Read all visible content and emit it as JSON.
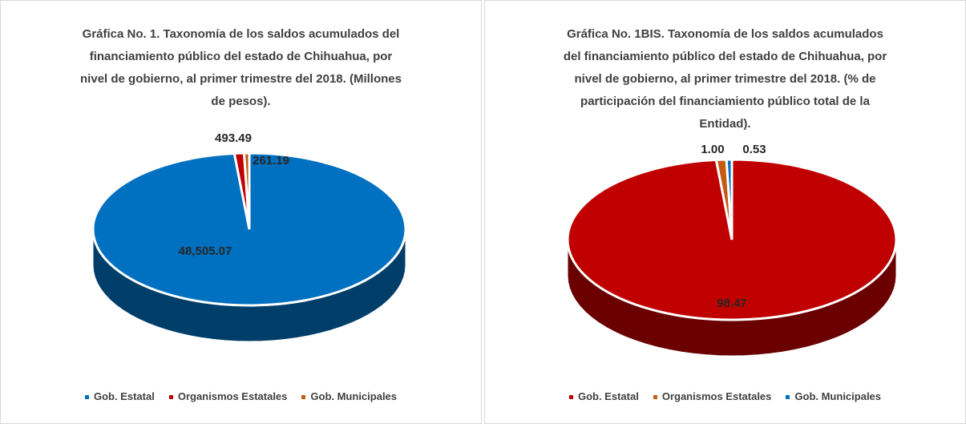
{
  "chart_data": [
    {
      "type": "pie",
      "title": "Gráfica No. 1. Taxonomía de los saldos acumulados del financiamiento público del estado de Chihuahua, por nivel de gobierno, al primer trimestre del 2018. (Millones de pesos).",
      "categories": [
        "Gob. Estatal",
        "Organismos Estatales",
        "Gob. Municipales"
      ],
      "values": [
        48505.07,
        493.49,
        261.19
      ],
      "value_labels": [
        "48,505.07",
        "493.49",
        "261.19"
      ],
      "colors": [
        "#0070c0",
        "#c00000",
        "#c55a11"
      ]
    },
    {
      "type": "pie",
      "title": "Gráfica No. 1BIS. Taxonomía de los saldos acumulados del financiamiento público del estado de Chihuahua, por nivel de gobierno, al primer trimestre del 2018. (% de participación del financiamiento público total de la Entidad).",
      "categories": [
        "Gob. Estatal",
        "Organismos Estatales",
        "Gob. Municipales"
      ],
      "values": [
        98.47,
        1.0,
        0.53
      ],
      "value_labels": [
        "98.47",
        "1.00",
        "0.53"
      ],
      "colors": [
        "#c00000",
        "#c55a11",
        "#0070c0"
      ]
    }
  ]
}
